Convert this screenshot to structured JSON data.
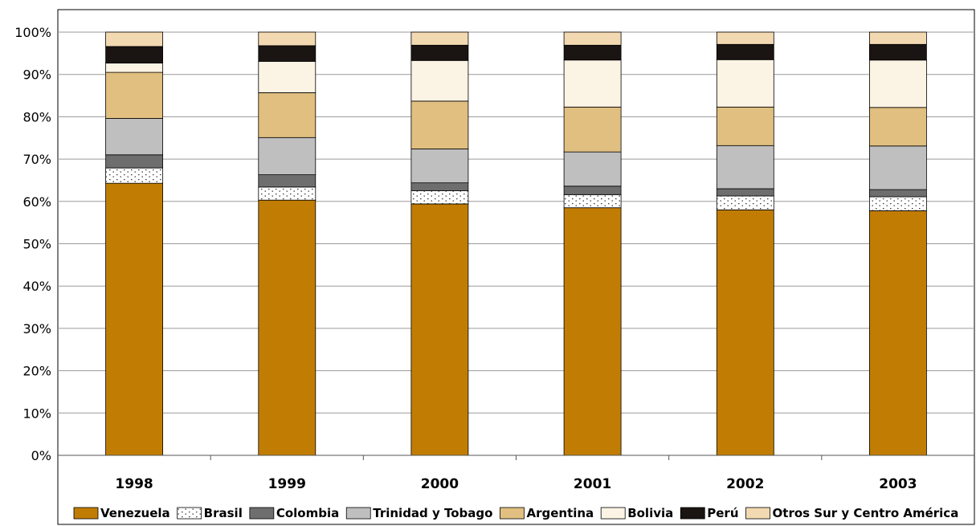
{
  "chart_data": {
    "type": "bar",
    "stacked": true,
    "normalized": true,
    "title": "",
    "xlabel": "",
    "ylabel": "",
    "ylim": [
      0,
      100
    ],
    "yticks": [
      "0%",
      "10%",
      "20%",
      "30%",
      "40%",
      "50%",
      "60%",
      "70%",
      "80%",
      "90%",
      "100%"
    ],
    "grid": true,
    "legend_position": "bottom",
    "categories": [
      "1998",
      "1999",
      "2000",
      "2001",
      "2002",
      "2003"
    ],
    "series": [
      {
        "name": "Venezuela",
        "color": "#c17d03",
        "pattern": "solid",
        "values": [
          64.3,
          60.3,
          59.4,
          58.5,
          58.0,
          57.8
        ]
      },
      {
        "name": "Brasil",
        "color": "#ffffff",
        "pattern": "dots",
        "values": [
          3.6,
          3.1,
          3.1,
          3.1,
          3.3,
          3.3
        ]
      },
      {
        "name": "Colombia",
        "color": "#6e6e6e",
        "pattern": "solid",
        "values": [
          3.1,
          2.9,
          1.9,
          2.0,
          1.7,
          1.7
        ]
      },
      {
        "name": "Trinidad y Tobago",
        "color": "#bfbfbf",
        "pattern": "solid",
        "values": [
          8.6,
          8.8,
          8.0,
          8.1,
          10.2,
          10.3
        ]
      },
      {
        "name": "Argentina",
        "color": "#e0bf80",
        "pattern": "solid",
        "values": [
          10.9,
          10.6,
          11.3,
          10.6,
          9.1,
          9.1
        ]
      },
      {
        "name": "Bolivia",
        "color": "#fbf3e4",
        "pattern": "solid",
        "values": [
          2.2,
          7.4,
          9.6,
          11.1,
          11.2,
          11.2
        ]
      },
      {
        "name": "Perú",
        "color": "#1a1412",
        "pattern": "solid",
        "values": [
          3.9,
          3.7,
          3.6,
          3.5,
          3.6,
          3.7
        ]
      },
      {
        "name": "Otros Sur y Centro América",
        "color": "#f3d9b1",
        "pattern": "solid",
        "values": [
          3.4,
          3.2,
          3.1,
          3.1,
          2.9,
          2.9
        ]
      }
    ]
  }
}
